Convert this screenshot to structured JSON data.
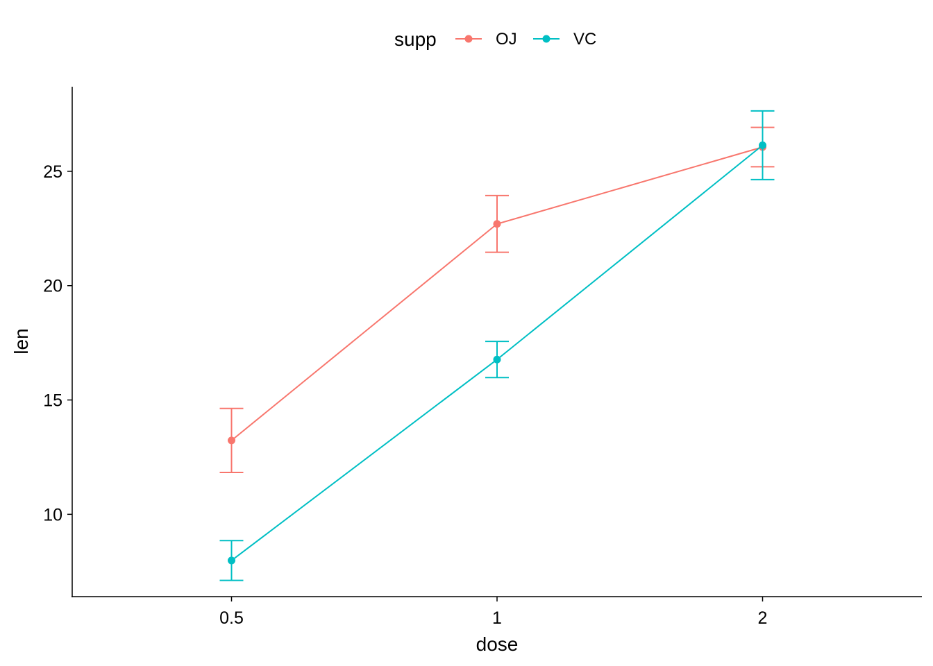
{
  "chart_data": {
    "type": "line",
    "x_type": "categorical",
    "categories": [
      "0.5",
      "1",
      "2"
    ],
    "xlabel": "dose",
    "ylabel": "len",
    "yticks": [
      10,
      15,
      20,
      25
    ],
    "ylim": [
      6.4,
      28.7
    ],
    "grid": false,
    "legend": {
      "title": "supp",
      "position": "top"
    },
    "error_bars": true,
    "series": [
      {
        "name": "OJ",
        "color": "#F8766D",
        "values": [
          13.23,
          22.7,
          26.06
        ],
        "err_low": [
          11.83,
          21.46,
          25.2
        ],
        "err_high": [
          14.63,
          23.94,
          26.92
        ]
      },
      {
        "name": "VC",
        "color": "#00BFC4",
        "values": [
          7.98,
          16.77,
          26.14
        ],
        "err_low": [
          7.11,
          15.98,
          24.64
        ],
        "err_high": [
          8.85,
          17.56,
          27.64
        ]
      }
    ]
  }
}
